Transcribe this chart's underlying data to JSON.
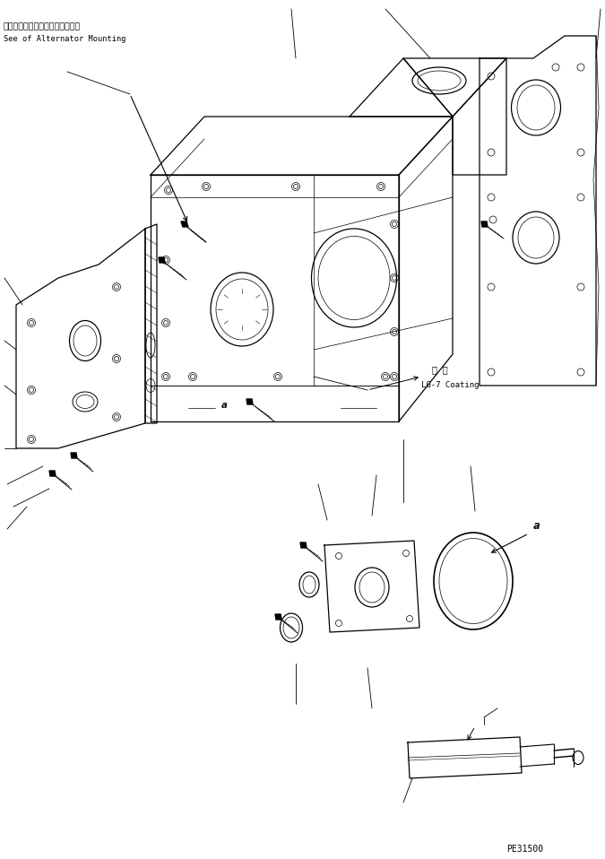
{
  "background_color": "#ffffff",
  "line_color": "#000000",
  "title_jp": "オルタネータマウンティング参照",
  "title_en": "See of Alternator Mounting",
  "label_a": "a",
  "coating_jp": "塗 布",
  "coating_en": "LG-7 Coating",
  "part_number": "PE31500",
  "fig_width": 6.75,
  "fig_height": 9.58,
  "dpi": 100
}
